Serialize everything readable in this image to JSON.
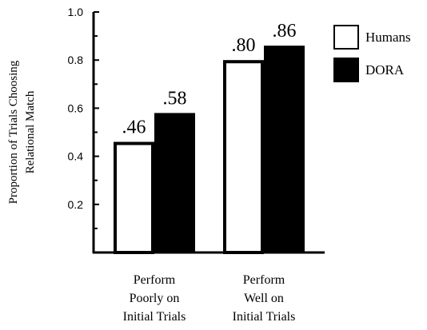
{
  "chart_data": {
    "type": "bar",
    "ylabel_lines": [
      "Proportion of Trials Choosing",
      "Relational Match"
    ],
    "ylim": [
      0,
      1.0
    ],
    "yticks": [
      {
        "value": 0.2,
        "label": "0.2"
      },
      {
        "value": 0.4,
        "label": "0.4"
      },
      {
        "value": 0.6,
        "label": "0.6"
      },
      {
        "value": 0.8,
        "label": "0.8"
      },
      {
        "value": 1.0,
        "label": "1.0"
      }
    ],
    "minor_ticks": [
      0.1,
      0.3,
      0.5,
      0.7,
      0.9
    ],
    "categories": [
      {
        "lines": [
          "Perform",
          "Poorly on",
          "Initial Trials"
        ]
      },
      {
        "lines": [
          "Perform",
          "Well on",
          "Initial Trials"
        ]
      }
    ],
    "series": [
      {
        "name": "Humans",
        "values": [
          0.46,
          0.8
        ],
        "value_labels": [
          ".46",
          ".80"
        ],
        "fill": "#ffffff",
        "stroke": "#000000"
      },
      {
        "name": "DORA",
        "values": [
          0.58,
          0.86
        ],
        "value_labels": [
          ".58",
          ".86"
        ],
        "fill": "#000000",
        "stroke": "#000000"
      }
    ],
    "legend_position": "top-right",
    "grid": false
  }
}
